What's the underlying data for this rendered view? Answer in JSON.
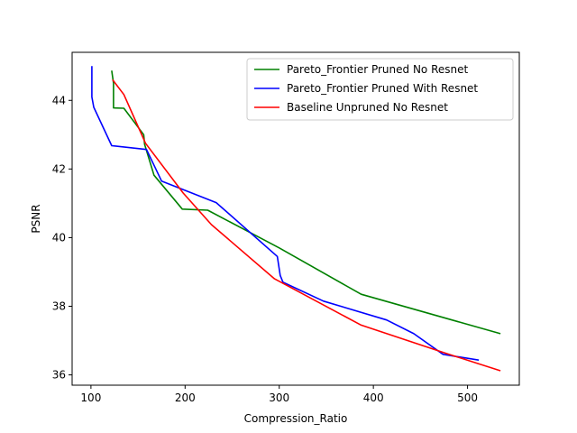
{
  "chart_data": {
    "type": "line",
    "title": "",
    "xlabel": "Compression_Ratio",
    "ylabel": "PSNR",
    "xlim": [
      80,
      555
    ],
    "ylim": [
      35.7,
      45.4
    ],
    "xticks": [
      100,
      200,
      300,
      400,
      500
    ],
    "yticks": [
      36,
      38,
      40,
      42,
      44
    ],
    "grid": false,
    "legend_position": "top-right",
    "series": [
      {
        "name": "Pareto_Frontier Pruned No Resnet",
        "color": "#008000",
        "x": [
          122,
          124,
          124,
          135,
          156,
          157,
          167,
          197,
          224,
          300,
          387,
          535
        ],
        "y": [
          44.87,
          44.5,
          43.78,
          43.77,
          43.0,
          42.72,
          41.82,
          40.83,
          40.8,
          39.7,
          38.35,
          37.2
        ]
      },
      {
        "name": "Pareto_Frontier Pruned With Resnet",
        "color": "#0000ff",
        "x": [
          101,
          101,
          103,
          122,
          159,
          175,
          233,
          298,
          301,
          304,
          347,
          414,
          443,
          474,
          512
        ],
        "y": [
          45.0,
          44.1,
          43.8,
          42.68,
          42.57,
          41.65,
          41.02,
          39.45,
          38.9,
          38.7,
          38.15,
          37.6,
          37.2,
          36.6,
          36.43
        ]
      },
      {
        "name": "Baseline Unpruned No Resnet",
        "color": "#ff0000",
        "x": [
          123,
          135,
          158,
          198,
          228,
          295,
          387,
          478,
          535
        ],
        "y": [
          44.6,
          44.17,
          42.75,
          41.3,
          40.38,
          38.8,
          37.45,
          36.62,
          36.12
        ]
      }
    ]
  }
}
